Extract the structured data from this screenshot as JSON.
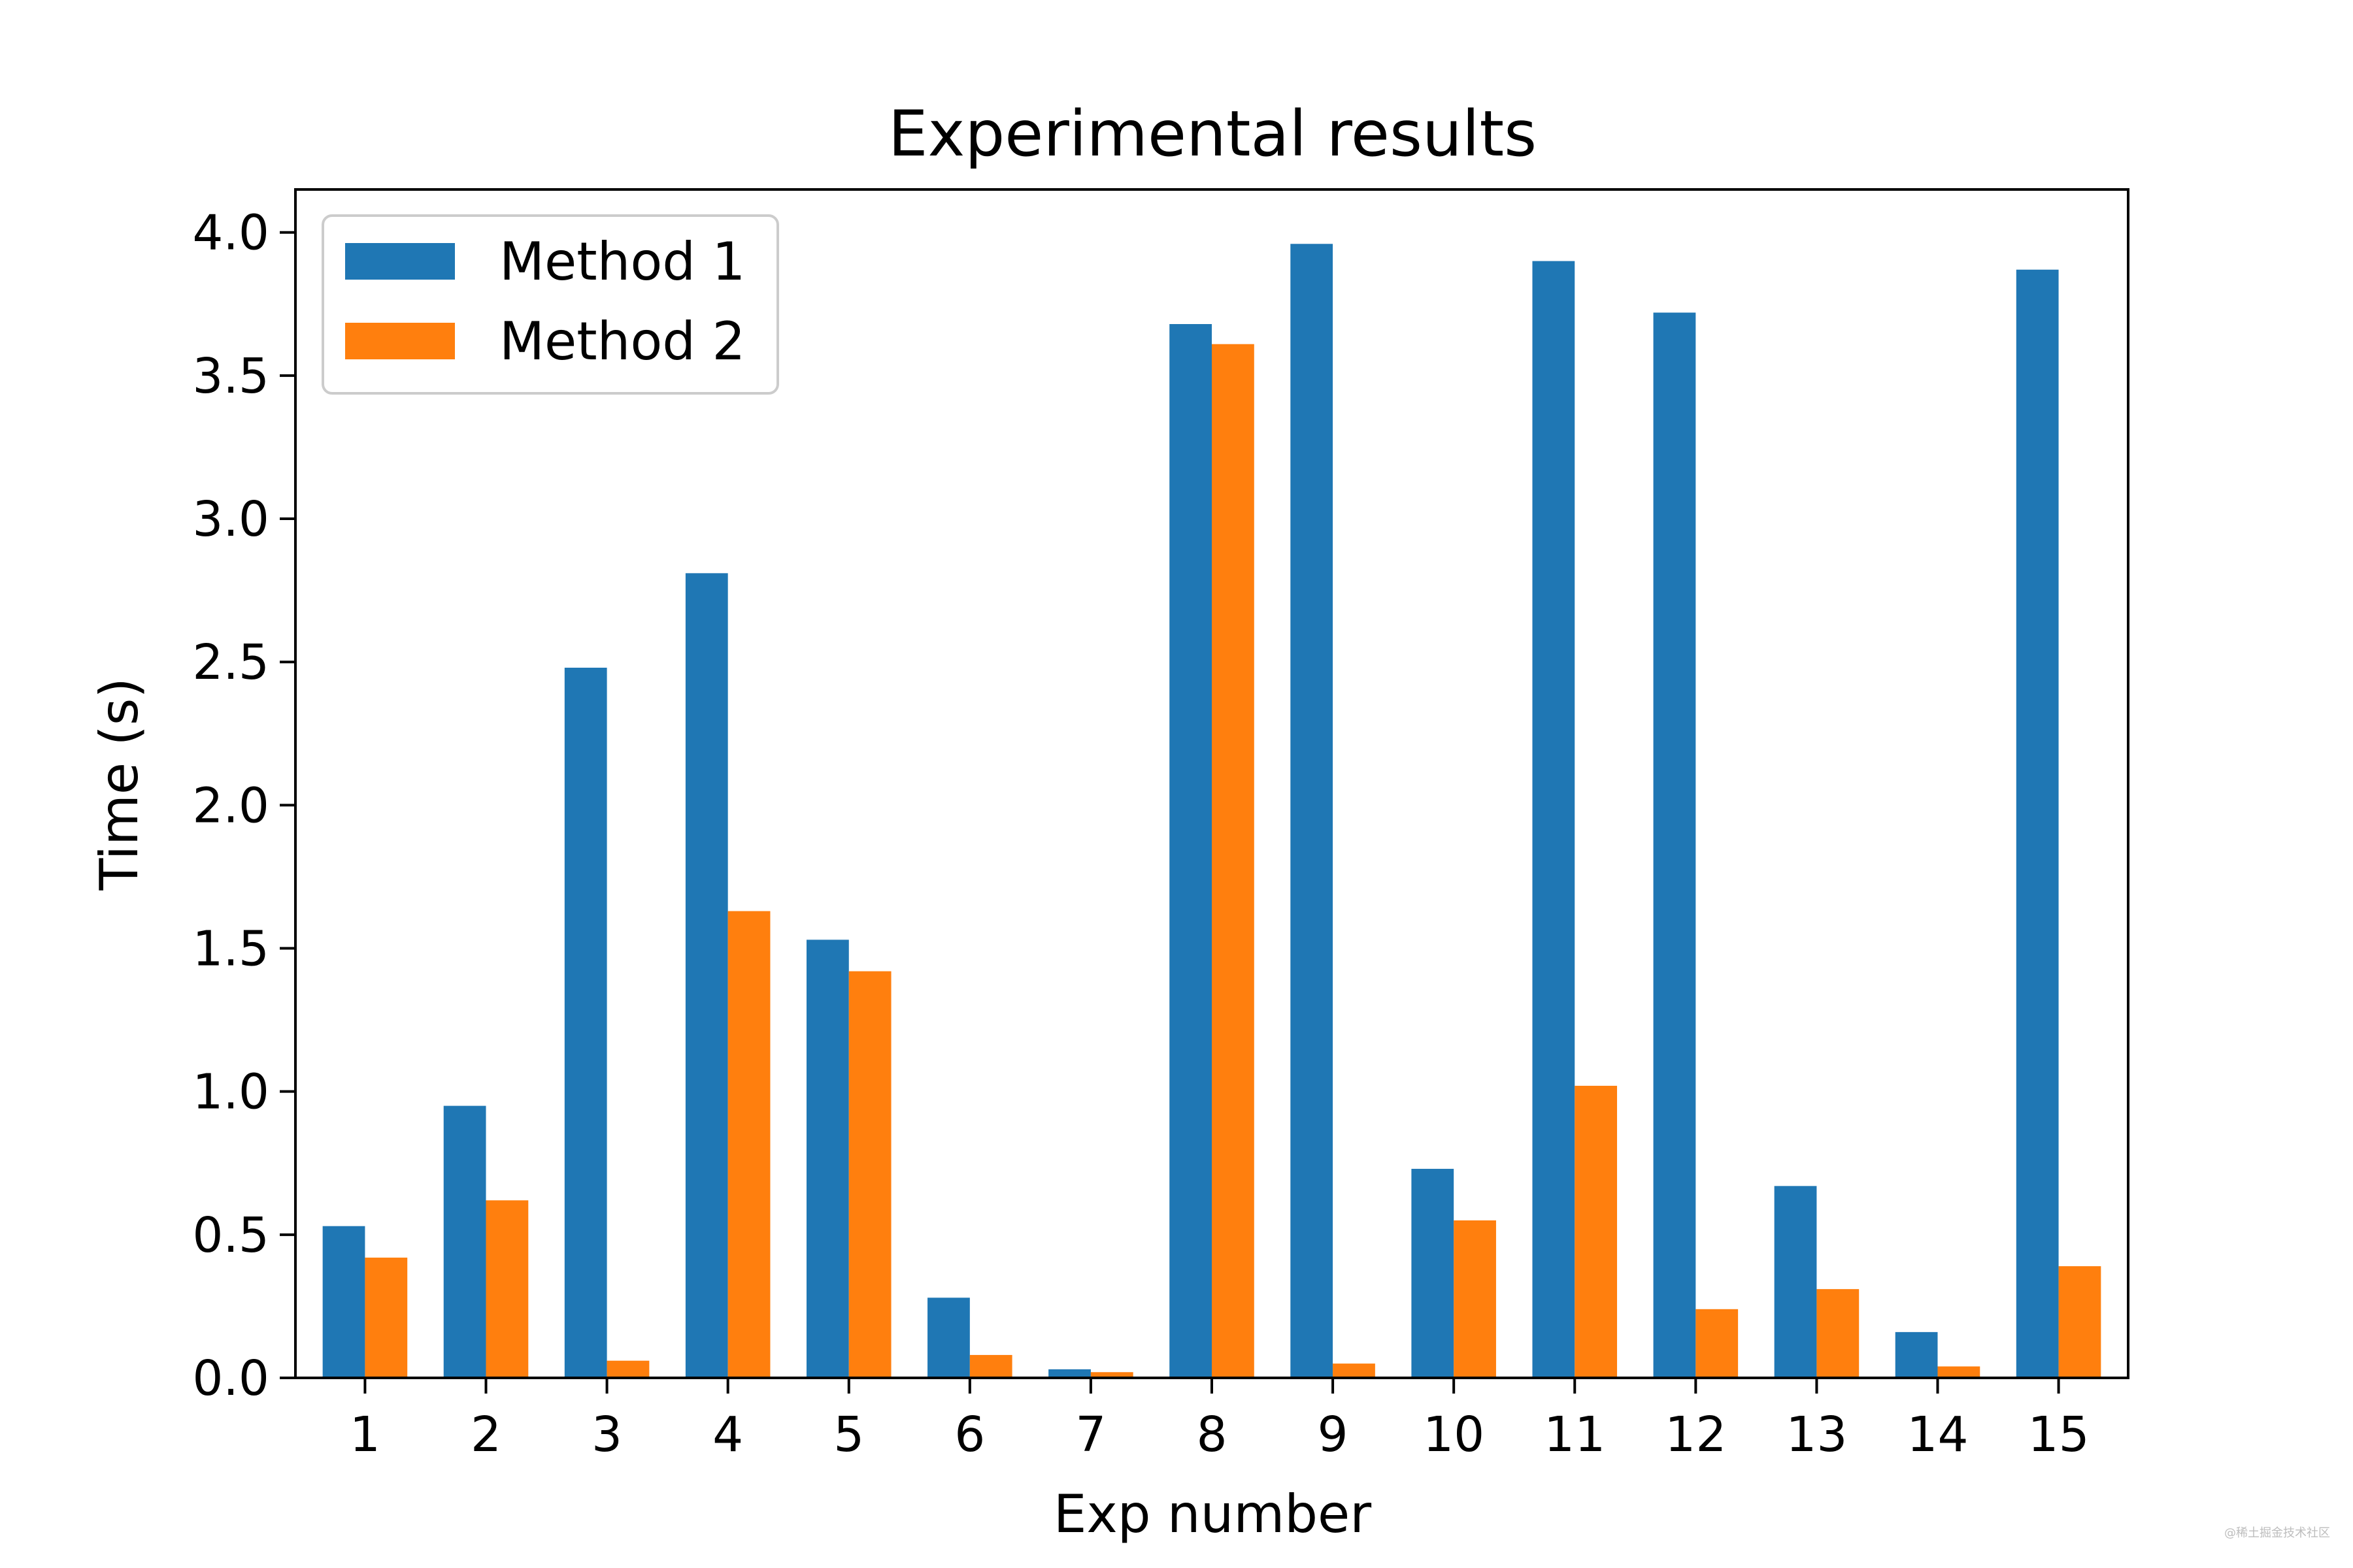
{
  "chart_data": {
    "type": "bar",
    "title": "Experimental results",
    "xlabel": "Exp number",
    "ylabel": "Time (s)",
    "categories": [
      "1",
      "2",
      "3",
      "4",
      "5",
      "6",
      "7",
      "8",
      "9",
      "10",
      "11",
      "12",
      "13",
      "14",
      "15"
    ],
    "series": [
      {
        "name": "Method 1",
        "color": "#1f77b4",
        "values": [
          0.53,
          0.95,
          2.48,
          2.81,
          1.53,
          0.28,
          0.03,
          3.68,
          3.96,
          0.73,
          3.9,
          3.72,
          0.67,
          0.16,
          3.87
        ]
      },
      {
        "name": "Method 2",
        "color": "#ff7f0e",
        "values": [
          0.42,
          0.62,
          0.06,
          1.63,
          1.42,
          0.08,
          0.02,
          3.61,
          0.05,
          0.55,
          1.02,
          0.24,
          0.31,
          0.04,
          0.39
        ]
      }
    ],
    "ylim": [
      0,
      4.15
    ],
    "yticks": [
      "0.0",
      "0.5",
      "1.0",
      "1.5",
      "2.0",
      "2.5",
      "3.0",
      "3.5",
      "4.0"
    ],
    "grid": false,
    "legend_position": "top-left"
  },
  "watermark": "@稀土掘金技术社区"
}
